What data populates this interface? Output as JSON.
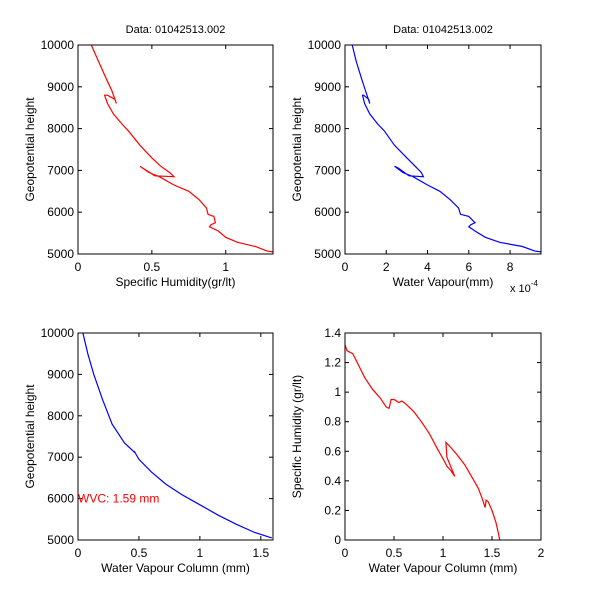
{
  "chart_data": [
    {
      "type": "line",
      "title": "Data: 01042513.002",
      "xlabel": "Specific Humidity(gr/lt)",
      "ylabel": "Geopotential height",
      "xlim": [
        0,
        1.32
      ],
      "ylim": [
        5000,
        10000
      ],
      "xticks": [
        0,
        0.5,
        1
      ],
      "xtick_labels": [
        "0",
        "0.5",
        "1"
      ],
      "yticks": [
        5000,
        6000,
        7000,
        8000,
        9000,
        10000
      ],
      "ytick_labels": [
        "5000",
        "6000",
        "7000",
        "8000",
        "9000",
        "10000"
      ],
      "color": "#ff0000",
      "series": [
        {
          "name": "profile",
          "x": [
            0.09,
            0.14,
            0.19,
            0.23,
            0.26,
            0.25,
            0.2,
            0.18,
            0.2,
            0.24,
            0.3,
            0.34,
            0.42,
            0.5,
            0.56,
            0.62,
            0.65,
            0.52,
            0.44,
            0.42,
            0.48,
            0.55,
            0.65,
            0.75,
            0.82,
            0.87,
            0.88,
            0.92,
            0.93,
            0.9,
            0.89,
            0.95,
            1.0,
            1.08,
            1.2,
            1.28,
            1.32
          ],
          "y": [
            10000,
            9600,
            9200,
            8900,
            8600,
            8700,
            8800,
            8800,
            8600,
            8350,
            8100,
            7950,
            7600,
            7300,
            7100,
            6950,
            6850,
            6870,
            7050,
            7100,
            6950,
            6850,
            6650,
            6500,
            6300,
            6100,
            5950,
            5900,
            5750,
            5700,
            5650,
            5550,
            5400,
            5280,
            5180,
            5070,
            5050
          ]
        }
      ]
    },
    {
      "type": "line",
      "title": "Data: 01042513.002",
      "xlabel": "Water Vapour(mm)",
      "x_multiplier": "x 10^-4",
      "ylabel": "Geopotential height",
      "xlim": [
        0,
        9.5
      ],
      "ylim": [
        5000,
        10000
      ],
      "xticks": [
        0,
        2,
        4,
        6,
        8
      ],
      "xtick_labels": [
        "0",
        "2",
        "4",
        "6",
        "8"
      ],
      "yticks": [
        5000,
        6000,
        7000,
        8000,
        9000,
        10000
      ],
      "ytick_labels": [
        "5000",
        "6000",
        "7000",
        "8000",
        "9000",
        "10000"
      ],
      "color": "#0000ff",
      "series": [
        {
          "name": "profile",
          "x": [
            0.35,
            0.55,
            0.8,
            1.0,
            1.2,
            1.15,
            0.9,
            0.85,
            0.95,
            1.2,
            1.6,
            1.9,
            2.4,
            3.0,
            3.4,
            3.7,
            3.8,
            3.1,
            2.6,
            2.4,
            2.8,
            3.3,
            4.0,
            4.6,
            5.1,
            5.5,
            5.6,
            6.0,
            6.3,
            6.1,
            6.0,
            6.3,
            6.8,
            7.5,
            8.6,
            9.2,
            9.5
          ],
          "y": [
            10000,
            9600,
            9200,
            8900,
            8600,
            8700,
            8800,
            8800,
            8600,
            8350,
            8100,
            7950,
            7600,
            7300,
            7100,
            6950,
            6850,
            6870,
            7050,
            7100,
            6950,
            6850,
            6650,
            6500,
            6300,
            6100,
            5950,
            5900,
            5750,
            5700,
            5650,
            5550,
            5400,
            5280,
            5180,
            5070,
            5050
          ]
        }
      ]
    },
    {
      "type": "line",
      "title": "",
      "xlabel": "Water Vapour Column (mm)",
      "ylabel": "Geopotential height",
      "xlim": [
        0,
        1.6
      ],
      "ylim": [
        5000,
        10000
      ],
      "xticks": [
        0,
        0.5,
        1,
        1.5
      ],
      "xtick_labels": [
        "0",
        "0.5",
        "1",
        "1.5"
      ],
      "yticks": [
        5000,
        6000,
        7000,
        8000,
        9000,
        10000
      ],
      "ytick_labels": [
        "5000",
        "6000",
        "7000",
        "8000",
        "9000",
        "10000"
      ],
      "color": "#0000ff",
      "annotation": {
        "text": "WVC: 1.59 mm",
        "x": 0,
        "y": 6000,
        "color": "#ff0000"
      },
      "series": [
        {
          "name": "cumulative",
          "x": [
            0.04,
            0.08,
            0.13,
            0.2,
            0.28,
            0.38,
            0.47,
            0.46,
            0.5,
            0.6,
            0.72,
            0.85,
            1.0,
            1.15,
            1.3,
            1.45,
            1.59
          ],
          "y": [
            10000,
            9500,
            9000,
            8400,
            7800,
            7350,
            7100,
            7150,
            6950,
            6650,
            6350,
            6100,
            5850,
            5600,
            5380,
            5180,
            5050
          ]
        }
      ]
    },
    {
      "type": "line",
      "title": "",
      "xlabel": "Water Vapour Column (mm)",
      "ylabel": "Specific Humidity (gr/lt)",
      "xlim": [
        0,
        2
      ],
      "ylim": [
        0,
        1.4
      ],
      "xticks": [
        0,
        0.5,
        1,
        1.5,
        2
      ],
      "xtick_labels": [
        "0",
        "0.5",
        "1",
        "1.5",
        "2"
      ],
      "yticks": [
        0,
        0.2,
        0.4,
        0.6,
        0.8,
        1,
        1.2,
        1.4
      ],
      "ytick_labels": [
        "0",
        "0.2",
        "0.4",
        "0.6",
        "0.8",
        "1",
        "1.2",
        "1.4"
      ],
      "color": "#ff0000",
      "series": [
        {
          "name": "sh_vs_wvc",
          "x": [
            0,
            0.02,
            0.08,
            0.14,
            0.2,
            0.28,
            0.36,
            0.42,
            0.45,
            0.47,
            0.5,
            0.55,
            0.58,
            0.62,
            0.7,
            0.78,
            0.86,
            0.94,
            1.0,
            1.04,
            1.08,
            1.12,
            1.04,
            1.03,
            1.06,
            1.14,
            1.22,
            1.3,
            1.36,
            1.4,
            1.43,
            1.44,
            1.46,
            1.5,
            1.54,
            1.56,
            1.58
          ],
          "y": [
            1.32,
            1.28,
            1.26,
            1.18,
            1.1,
            1.02,
            0.96,
            0.9,
            0.89,
            0.95,
            0.95,
            0.93,
            0.94,
            0.92,
            0.87,
            0.8,
            0.72,
            0.62,
            0.55,
            0.5,
            0.47,
            0.43,
            0.56,
            0.66,
            0.64,
            0.58,
            0.51,
            0.42,
            0.35,
            0.28,
            0.22,
            0.27,
            0.26,
            0.2,
            0.12,
            0.06,
            0
          ]
        }
      ]
    }
  ]
}
